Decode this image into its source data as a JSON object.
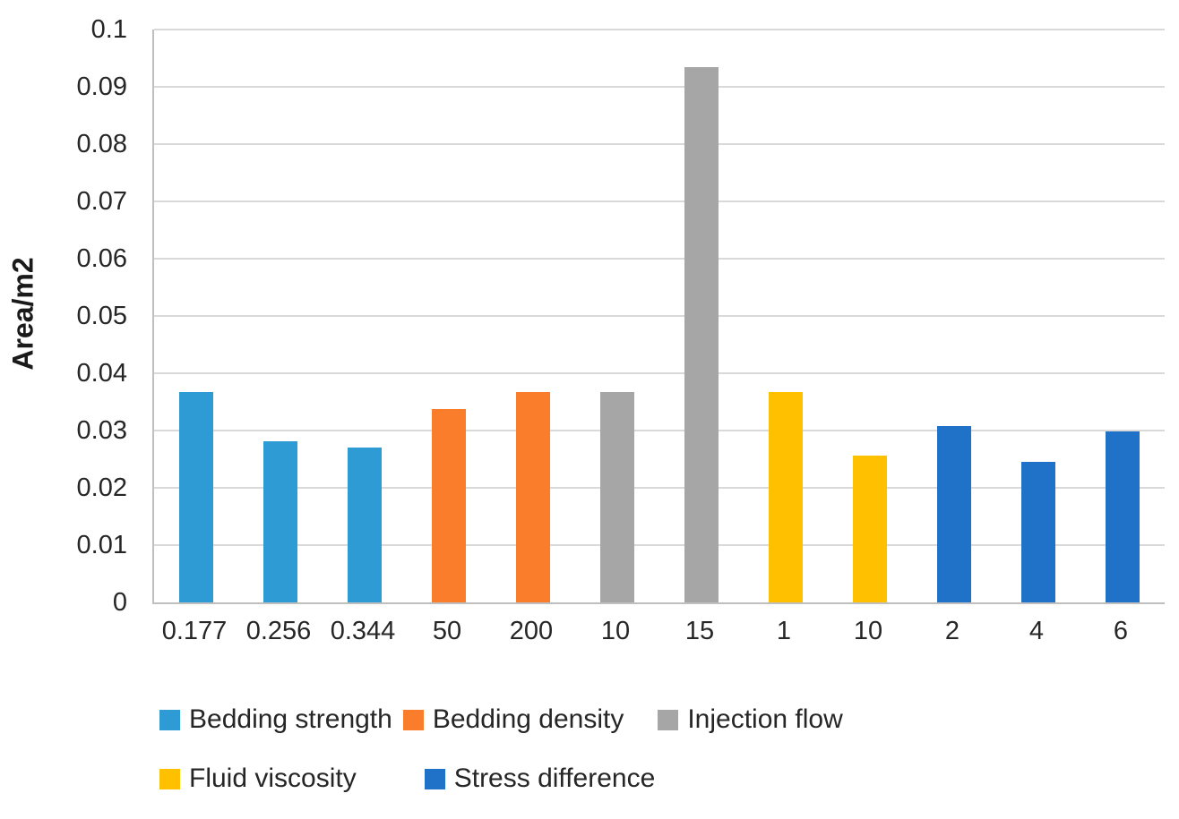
{
  "chart_data": {
    "type": "bar",
    "title": "",
    "xlabel": "",
    "ylabel": "Area/m2",
    "ylim": [
      0,
      0.1
    ],
    "ytick_step": 0.01,
    "ytick_labels": [
      "0",
      "0.01",
      "0.02",
      "0.03",
      "0.04",
      "0.05",
      "0.06",
      "0.07",
      "0.08",
      "0.09",
      "0.1"
    ],
    "grid": true,
    "legend_position": "bottom",
    "legend_rows": [
      3,
      2
    ],
    "categories": [
      "0.177",
      "0.256",
      "0.344",
      "50",
      "200",
      "10",
      "15",
      "1",
      "10",
      "2",
      "4",
      "6"
    ],
    "series": [
      {
        "name": "Bedding strength",
        "color": "#2E9BD5",
        "categories": [
          "0.177",
          "0.256",
          "0.344"
        ],
        "values": [
          0.0367,
          0.0281,
          0.027
        ]
      },
      {
        "name": "Bedding density",
        "color": "#F97D2B",
        "categories": [
          "50",
          "200"
        ],
        "values": [
          0.0338,
          0.0367
        ]
      },
      {
        "name": "Injection flow",
        "color": "#A6A6A6",
        "categories": [
          "10",
          "15"
        ],
        "values": [
          0.0367,
          0.0934
        ]
      },
      {
        "name": "Fluid viscosity",
        "color": "#FFC000",
        "categories": [
          "1",
          "10"
        ],
        "values": [
          0.0367,
          0.0256
        ]
      },
      {
        "name": "Stress difference",
        "color": "#1F72C8",
        "categories": [
          "2",
          "4",
          "6"
        ],
        "values": [
          0.0308,
          0.0245,
          0.0298
        ]
      }
    ],
    "colors": {
      "gridline": "#D9D9D9",
      "axis_line": "#BFBFBF",
      "text": "#262626"
    }
  }
}
